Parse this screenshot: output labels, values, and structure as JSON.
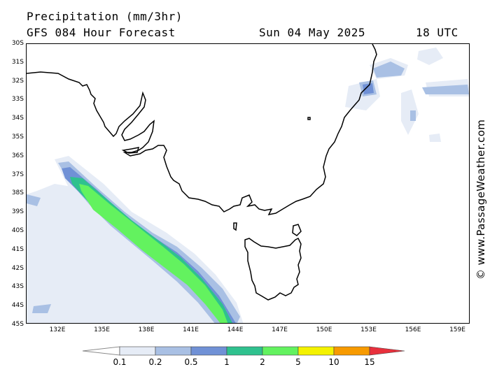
{
  "header": {
    "title": "Precipitation (mm/3hr)",
    "model": "GFS 084 Hour Forecast",
    "date": "Sun 04 May 2025",
    "time": "18 UTC"
  },
  "copyright": "© www.PassageWeather.com",
  "axes": {
    "lat_labels": [
      "30S",
      "31S",
      "32S",
      "33S",
      "34S",
      "35S",
      "36S",
      "37S",
      "38S",
      "39S",
      "40S",
      "41S",
      "42S",
      "43S",
      "44S",
      "45S"
    ],
    "lon_labels": [
      "132E",
      "135E",
      "138E",
      "141E",
      "144E",
      "147E",
      "150E",
      "153E",
      "156E",
      "159E"
    ]
  },
  "legend": {
    "labels": [
      "0.1",
      "0.2",
      "0.5",
      "1",
      "2",
      "5",
      "10",
      "15"
    ],
    "colors": [
      "#e6ecf6",
      "#a9c0e4",
      "#7091d6",
      "#2fc18e",
      "#63f25f",
      "#f4f200",
      "#f79a00",
      "#e8303c"
    ]
  }
}
